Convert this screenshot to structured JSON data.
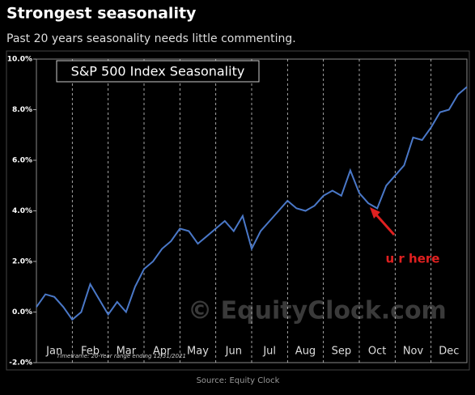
{
  "header": {
    "title": "Strongest seasonality",
    "subtitle": "Past 20 years seasonality needs little commenting."
  },
  "chart_data": {
    "type": "line",
    "title": "S&P 500 Index Seasonality",
    "x": [
      0,
      0.25,
      0.5,
      0.75,
      1,
      1.25,
      1.5,
      1.75,
      2,
      2.25,
      2.5,
      2.75,
      3,
      3.25,
      3.5,
      3.75,
      4,
      4.25,
      4.5,
      4.75,
      5,
      5.25,
      5.5,
      5.75,
      6,
      6.25,
      6.5,
      6.75,
      7,
      7.25,
      7.5,
      7.75,
      8,
      8.25,
      8.5,
      8.75,
      9,
      9.25,
      9.5,
      9.75,
      10,
      10.25,
      10.5,
      10.75,
      11,
      11.25,
      11.5,
      11.75,
      12
    ],
    "values": [
      0.2,
      0.7,
      0.6,
      0.2,
      -0.3,
      0.0,
      1.1,
      0.5,
      -0.1,
      0.4,
      0.0,
      1.0,
      1.7,
      2.0,
      2.5,
      2.8,
      3.3,
      3.2,
      2.7,
      3.0,
      3.3,
      3.6,
      3.2,
      3.8,
      2.5,
      3.2,
      3.6,
      4.0,
      4.4,
      4.1,
      4.0,
      4.2,
      4.6,
      4.8,
      4.6,
      5.6,
      4.7,
      4.3,
      4.1,
      5.0,
      5.4,
      5.8,
      6.9,
      6.8,
      7.3,
      7.9,
      8.0,
      8.6,
      8.9
    ],
    "color": "#4a78c8",
    "xlim": [
      0,
      12
    ],
    "xticks": [
      {
        "value": 0.5,
        "label": "Jan"
      },
      {
        "value": 1.5,
        "label": "Feb"
      },
      {
        "value": 2.5,
        "label": "Mar"
      },
      {
        "value": 3.5,
        "label": "Apr"
      },
      {
        "value": 4.5,
        "label": "May"
      },
      {
        "value": 5.5,
        "label": "Jun"
      },
      {
        "value": 6.5,
        "label": "Jul"
      },
      {
        "value": 7.5,
        "label": "Aug"
      },
      {
        "value": 8.5,
        "label": "Sep"
      },
      {
        "value": 9.5,
        "label": "Oct"
      },
      {
        "value": 10.5,
        "label": "Nov"
      },
      {
        "value": 11.5,
        "label": "Dec"
      }
    ],
    "ylim": [
      -2,
      10
    ],
    "yticks": [
      {
        "value": -2,
        "label": "-2.0%"
      },
      {
        "value": 0,
        "label": "0.0%"
      },
      {
        "value": 2,
        "label": "2.0%"
      },
      {
        "value": 4,
        "label": "4.0%"
      },
      {
        "value": 6,
        "label": "6.0%"
      },
      {
        "value": 8,
        "label": "8.0%"
      },
      {
        "value": 10,
        "label": "10.0%"
      }
    ],
    "annotation": "u r here",
    "watermark": "© EquityClock.com",
    "note": "Timeframe: 20-Year range ending 12/31/2021"
  },
  "source": "Source: Equity Clock"
}
